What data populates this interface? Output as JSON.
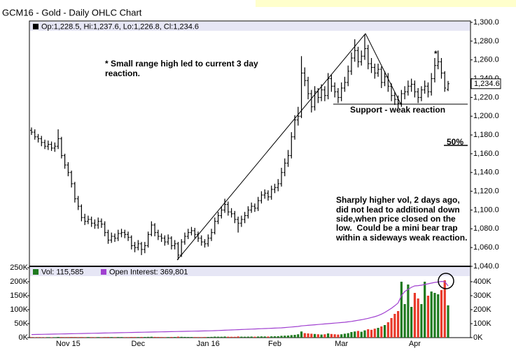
{
  "chart_data": [
    {
      "type": "ohlc",
      "title": "GCM16 - Gold - Daily OHLC Chart",
      "legend_text": "Op:1,228.5, Hi:1,237.6, Lo:1,226.8, Cl:1,234.6",
      "last_label": "1,234.6",
      "color": "#000000",
      "categories": [
        null,
        null,
        null,
        null,
        null,
        null,
        null,
        null,
        null,
        null,
        null,
        "Nov 15",
        null,
        null,
        null,
        null,
        null,
        null,
        null,
        null,
        null,
        null,
        null,
        null,
        null,
        null,
        null,
        null,
        null,
        null,
        null,
        null,
        "Dec",
        null,
        null,
        null,
        null,
        null,
        null,
        null,
        null,
        null,
        null,
        null,
        null,
        null,
        null,
        null,
        null,
        null,
        null,
        null,
        null,
        "Jan 16",
        null,
        null,
        null,
        null,
        null,
        null,
        null,
        null,
        null,
        null,
        null,
        null,
        null,
        null,
        null,
        null,
        null,
        null,
        null,
        "Feb",
        null,
        null,
        null,
        null,
        null,
        null,
        null,
        null,
        null,
        null,
        null,
        null,
        null,
        null,
        null,
        null,
        null,
        null,
        null,
        "Mar",
        null,
        null,
        null,
        null,
        null,
        null,
        null,
        null,
        null,
        null,
        null,
        null,
        null,
        null,
        null,
        null,
        null,
        null,
        null,
        null,
        null,
        "Apr",
        null,
        null,
        null,
        null,
        null,
        null,
        null,
        null,
        null,
        null
      ],
      "open": [
        1185,
        1183,
        1178,
        1176,
        1172,
        1168,
        1170,
        1166,
        1168,
        1176,
        1158,
        1148,
        1140,
        1128,
        1112,
        1104,
        1092,
        1088,
        1090,
        1086,
        1084,
        1088,
        1085,
        1076,
        1068,
        1072,
        1070,
        1075,
        1076,
        1074,
        1071,
        1062,
        1060,
        1064,
        1058,
        1062,
        1074,
        1084,
        1076,
        1072,
        1070,
        1066,
        1070,
        1062,
        1064,
        1052,
        1066,
        1072,
        1076,
        1078,
        1074,
        1070,
        1066,
        1064,
        1070,
        1076,
        1088,
        1094,
        1100,
        1106,
        1098,
        1096,
        1090,
        1086,
        1090,
        1094,
        1100,
        1104,
        1102,
        1110,
        1116,
        1118,
        1114,
        1122,
        1124,
        1128,
        1140,
        1150,
        1158,
        1178,
        1196,
        1200,
        1246,
        1238,
        1224,
        1210,
        1226,
        1220,
        1228,
        1222,
        1240,
        1232,
        1226,
        1220,
        1230,
        1236,
        1248,
        1262,
        1270,
        1258,
        1264,
        1272,
        1256,
        1252,
        1246,
        1250,
        1236,
        1242,
        1232,
        1222,
        1218,
        1214,
        1224,
        1226,
        1232,
        1234,
        1226,
        1220,
        1228,
        1232,
        1226,
        1240,
        1254,
        1258,
        1246,
        1228.5
      ],
      "high": [
        1188,
        1186,
        1181,
        1179,
        1175,
        1174,
        1173,
        1172,
        1186,
        1178,
        1160,
        1151,
        1142,
        1130,
        1115,
        1106,
        1096,
        1094,
        1093,
        1090,
        1092,
        1091,
        1088,
        1079,
        1076,
        1075,
        1079,
        1080,
        1079,
        1077,
        1073,
        1066,
        1068,
        1066,
        1066,
        1077,
        1088,
        1086,
        1079,
        1075,
        1073,
        1074,
        1072,
        1068,
        1066,
        1069,
        1076,
        1080,
        1082,
        1081,
        1077,
        1073,
        1069,
        1074,
        1080,
        1092,
        1098,
        1104,
        1112,
        1109,
        1102,
        1099,
        1093,
        1094,
        1098,
        1104,
        1108,
        1107,
        1114,
        1120,
        1122,
        1121,
        1126,
        1128,
        1133,
        1145,
        1155,
        1164,
        1183,
        1201,
        1210,
        1264,
        1252,
        1242,
        1228,
        1232,
        1230,
        1234,
        1232,
        1246,
        1244,
        1236,
        1230,
        1236,
        1242,
        1254,
        1268,
        1282,
        1274,
        1270,
        1287,
        1276,
        1262,
        1256,
        1256,
        1253,
        1248,
        1246,
        1235,
        1226,
        1222,
        1228,
        1232,
        1238,
        1240,
        1238,
        1230,
        1232,
        1238,
        1236,
        1246,
        1262,
        1270,
        1262,
        1248,
        1237.6
      ],
      "low": [
        1180,
        1175,
        1172,
        1168,
        1165,
        1164,
        1163,
        1162,
        1165,
        1155,
        1144,
        1136,
        1124,
        1108,
        1100,
        1088,
        1084,
        1085,
        1082,
        1080,
        1080,
        1081,
        1072,
        1064,
        1065,
        1066,
        1067,
        1071,
        1070,
        1067,
        1058,
        1055,
        1057,
        1052,
        1054,
        1060,
        1072,
        1072,
        1068,
        1066,
        1062,
        1063,
        1058,
        1058,
        1047,
        1050,
        1063,
        1069,
        1073,
        1070,
        1066,
        1062,
        1060,
        1061,
        1067,
        1074,
        1085,
        1091,
        1097,
        1094,
        1092,
        1086,
        1076,
        1082,
        1086,
        1091,
        1097,
        1098,
        1099,
        1107,
        1112,
        1110,
        1111,
        1118,
        1120,
        1125,
        1136,
        1146,
        1155,
        1175,
        1190,
        1198,
        1232,
        1218,
        1204,
        1206,
        1214,
        1216,
        1216,
        1218,
        1226,
        1220,
        1214,
        1216,
        1226,
        1232,
        1244,
        1258,
        1252,
        1254,
        1260,
        1250,
        1246,
        1240,
        1242,
        1230,
        1232,
        1226,
        1216,
        1212,
        1208,
        1210,
        1218,
        1222,
        1226,
        1220,
        1214,
        1216,
        1224,
        1220,
        1222,
        1236,
        1250,
        1240,
        1226,
        1226.8
      ],
      "close": [
        1183,
        1178,
        1176,
        1172,
        1168,
        1170,
        1166,
        1168,
        1176,
        1158,
        1148,
        1140,
        1128,
        1112,
        1104,
        1092,
        1088,
        1090,
        1086,
        1084,
        1088,
        1085,
        1076,
        1068,
        1072,
        1070,
        1075,
        1076,
        1074,
        1071,
        1062,
        1060,
        1064,
        1058,
        1062,
        1074,
        1084,
        1076,
        1072,
        1070,
        1066,
        1070,
        1062,
        1064,
        1052,
        1066,
        1072,
        1076,
        1078,
        1074,
        1070,
        1066,
        1064,
        1070,
        1076,
        1088,
        1094,
        1100,
        1106,
        1098,
        1096,
        1090,
        1086,
        1090,
        1094,
        1100,
        1104,
        1102,
        1110,
        1116,
        1118,
        1114,
        1122,
        1124,
        1128,
        1140,
        1150,
        1158,
        1178,
        1196,
        1200,
        1246,
        1238,
        1224,
        1210,
        1226,
        1220,
        1228,
        1222,
        1240,
        1232,
        1226,
        1220,
        1230,
        1236,
        1248,
        1262,
        1270,
        1258,
        1264,
        1272,
        1256,
        1252,
        1246,
        1250,
        1236,
        1242,
        1232,
        1222,
        1218,
        1214,
        1224,
        1226,
        1232,
        1234,
        1226,
        1220,
        1228,
        1232,
        1226,
        1240,
        1254,
        1258,
        1246,
        1230,
        1234.6
      ],
      "ylim": [
        1040,
        1300
      ],
      "yticks": [
        {
          "value": 1040,
          "label": "1,040.0"
        },
        {
          "value": 1060,
          "label": "1,060.0"
        },
        {
          "value": 1080,
          "label": "1,080.0"
        },
        {
          "value": 1100,
          "label": "1,100.0"
        },
        {
          "value": 1120,
          "label": "1,120.0"
        },
        {
          "value": 1140,
          "label": "1,140.0"
        },
        {
          "value": 1160,
          "label": "1,160.0"
        },
        {
          "value": 1180,
          "label": "1,180.0"
        },
        {
          "value": 1200,
          "label": "1,200.0"
        },
        {
          "value": 1220,
          "label": "1,220.0"
        },
        {
          "value": 1240,
          "label": "1,240.0"
        },
        {
          "value": 1260,
          "label": "1,260.0"
        },
        {
          "value": 1280,
          "label": "1,280.0"
        },
        {
          "value": 1300,
          "label": "1,300.0"
        }
      ],
      "annotations": [
        [
          "* Small range high led to current 3 day",
          "reaction."
        ],
        [
          "Support - weak reaction"
        ],
        [
          "50%"
        ],
        [
          "Sharply higher vol, 2 days ago,",
          "did not lead to additional down",
          "side,when price closed on the",
          "low.  Could be a mini bear trap",
          "within a sideways weak reaction."
        ],
        [
          "*"
        ]
      ]
    },
    {
      "type": "bar",
      "series": [
        {
          "name": "Vol: 115,585",
          "color": "#1f7a1f",
          "down_color": "#e8392a",
          "values": [
            2000,
            1500,
            1800,
            1600,
            1400,
            1700,
            1500,
            1600,
            2500,
            2200,
            2000,
            2100,
            2400,
            2300,
            2000,
            2200,
            1900,
            2100,
            2000,
            1800,
            2000,
            1900,
            2300,
            2400,
            2100,
            2000,
            2200,
            2100,
            1900,
            2000,
            2400,
            2300,
            2100,
            2600,
            2400,
            2800,
            3200,
            2600,
            2400,
            2200,
            2000,
            2100,
            2500,
            2300,
            3500,
            3000,
            2600,
            2400,
            2300,
            2200,
            2100,
            2000,
            2300,
            2500,
            2800,
            3600,
            3400,
            3200,
            3900,
            3300,
            3100,
            3000,
            4200,
            3500,
            3300,
            3600,
            3800,
            3400,
            4000,
            4400,
            4200,
            4000,
            4600,
            4800,
            5000,
            6500,
            7000,
            7500,
            9000,
            10000,
            12000,
            22000,
            16000,
            15000,
            14000,
            13000,
            12000,
            11000,
            12000,
            15000,
            13000,
            12000,
            11000,
            12000,
            14000,
            16000,
            20000,
            22000,
            24000,
            21000,
            26000,
            30000,
            28000,
            32000,
            35000,
            40000,
            45000,
            55000,
            70000,
            85000,
            95000,
            200000,
            120000,
            190000,
            110000,
            160000,
            140000,
            120000,
            200000,
            150000,
            165000,
            160000,
            155000,
            170000,
            205000,
            115585
          ]
        },
        {
          "name": "Open Interest: 369,801",
          "color": "#a040d0",
          "axis": "y2",
          "values": [
            22000,
            22500,
            23000,
            23500,
            24000,
            24500,
            25000,
            25500,
            26000,
            26500,
            27000,
            27500,
            28000,
            28500,
            29000,
            29500,
            30000,
            30500,
            31000,
            31500,
            32000,
            32500,
            33000,
            33500,
            34000,
            34500,
            35000,
            35500,
            36000,
            36500,
            37000,
            37500,
            38000,
            38500,
            39000,
            39500,
            40000,
            40500,
            41000,
            41500,
            42000,
            42500,
            43000,
            43500,
            44000,
            44500,
            45000,
            45500,
            46000,
            46500,
            47000,
            47500,
            48000,
            48500,
            49000,
            50000,
            51000,
            52000,
            53000,
            54000,
            55000,
            56000,
            57000,
            58000,
            59000,
            60000,
            61000,
            62000,
            63000,
            64000,
            65000,
            66000,
            67000,
            68000,
            69000,
            70000,
            72000,
            74000,
            76000,
            78000,
            80000,
            84000,
            86000,
            88000,
            90000,
            92000,
            94000,
            96000,
            98000,
            100000,
            102000,
            104000,
            106000,
            108000,
            110000,
            113000,
            116000,
            120000,
            124000,
            128000,
            133000,
            138000,
            144000,
            150000,
            158000,
            168000,
            180000,
            195000,
            210000,
            228000,
            248000,
            300000,
            330000,
            345000,
            360000,
            370000,
            372000,
            375000,
            380000,
            385000,
            390000,
            395000,
            398000,
            402000,
            400000,
            369801
          ]
        }
      ],
      "ylim": [
        0,
        250000
      ],
      "yticks": [
        {
          "value": 0,
          "label": "0K"
        },
        {
          "value": 50000,
          "label": "50K"
        },
        {
          "value": 100000,
          "label": "100K"
        },
        {
          "value": 150000,
          "label": "150K"
        },
        {
          "value": 200000,
          "label": "200K"
        },
        {
          "value": 250000,
          "label": "250K"
        }
      ],
      "y2lim": [
        0,
        500000
      ],
      "y2ticks": [
        {
          "value": 0,
          "label": "0K"
        },
        {
          "value": 100000,
          "label": "100K"
        },
        {
          "value": 200000,
          "label": "200K"
        },
        {
          "value": 300000,
          "label": "300K"
        },
        {
          "value": 400000,
          "label": "400K"
        }
      ]
    }
  ]
}
